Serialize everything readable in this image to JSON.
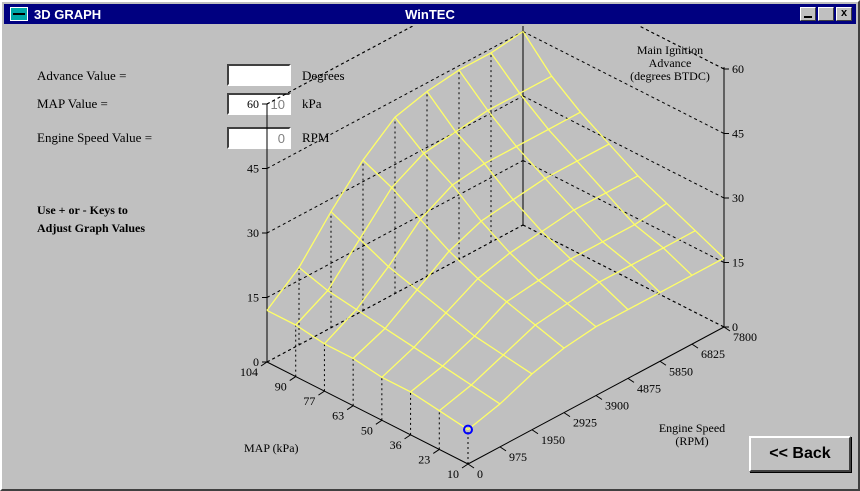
{
  "window": {
    "title_left": "3D GRAPH",
    "title_center": "WinTEC",
    "minimize": "",
    "maximize": "",
    "close": "x"
  },
  "form": {
    "advance_label": "Advance Value =",
    "advance_value": "",
    "advance_unit": "Degrees",
    "map_label": "MAP Value =",
    "map_value": "10",
    "map_unit": "kPa",
    "speed_label": "Engine Speed Value =",
    "speed_value": "0",
    "speed_unit": "RPM"
  },
  "instructions": [
    "Use + or - Keys to",
    "Adjust Graph Values"
  ],
  "back_label": "<< Back",
  "colors": {
    "grid": "#ffff66",
    "cursor": "#0000ff",
    "titlebar": "#000080"
  },
  "chart_data": {
    "type": "surface",
    "z_title": [
      "Main Ignition",
      "Advance",
      "(degrees BTDC)"
    ],
    "map_title": "MAP (kPa)",
    "rpm_title": [
      "Engine Speed",
      "(RPM)"
    ],
    "z_ticks": [
      "0",
      "15",
      "30",
      "45",
      "60"
    ],
    "zlim": [
      0,
      60
    ],
    "map_ticks": [
      "104",
      "90",
      "77",
      "63",
      "50",
      "36",
      "23",
      "10"
    ],
    "rpm_ticks": [
      "0",
      "975",
      "1950",
      "2925",
      "3900",
      "4875",
      "5850",
      "6825",
      "7800"
    ],
    "advance_values": [
      [
        8,
        10,
        13,
        15,
        16,
        16,
        16,
        16,
        16
      ],
      [
        9,
        11,
        14,
        17,
        18,
        19,
        19,
        19,
        19
      ],
      [
        10,
        12,
        15,
        19,
        20,
        21,
        21,
        21,
        22
      ],
      [
        10,
        13,
        17,
        21,
        23,
        24,
        25,
        25,
        25
      ],
      [
        11,
        14,
        19,
        24,
        27,
        28,
        29,
        29,
        29
      ],
      [
        11,
        15,
        21,
        28,
        32,
        33,
        33,
        33,
        33
      ],
      [
        12,
        16,
        24,
        32,
        36,
        37,
        38,
        38,
        38
      ],
      [
        12,
        18,
        27,
        35,
        41,
        43,
        44,
        44,
        45
      ]
    ],
    "cursor": {
      "map": "10",
      "rpm": "0"
    }
  }
}
